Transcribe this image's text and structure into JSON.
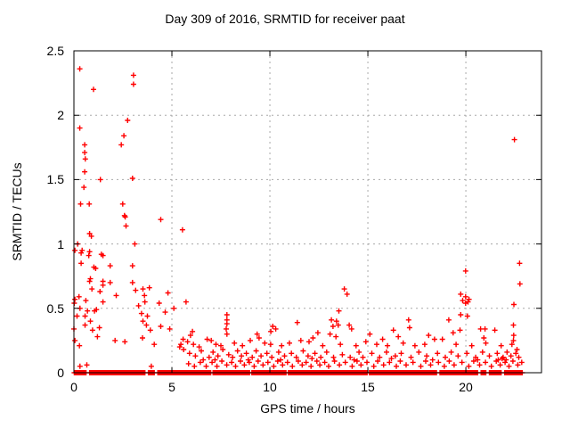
{
  "title": "Day 309 of 2016, SRMTID for receiver paat",
  "axes": {
    "xlabel": "GPS time / hours",
    "ylabel": "SRMTID / TECUs",
    "xtick_labels": [
      "0",
      "5",
      "10",
      "15",
      "20"
    ],
    "ytick_labels": [
      "0",
      "0.5",
      "1",
      "1.5",
      "2",
      "2.5"
    ]
  },
  "colors": {
    "marker": "#ff0000",
    "grid": "#a8a8a8",
    "border": "#000000",
    "text": "#000000",
    "background": "#ffffff"
  },
  "chart_data": {
    "type": "scatter",
    "marker": "plus",
    "title": "Day 309 of 2016, SRMTID for receiver paat",
    "xlabel": "GPS time / hours",
    "ylabel": "SRMTID / TECUs",
    "xlim": [
      0,
      23.86
    ],
    "ylim": [
      0,
      2.5
    ],
    "xticks": [
      0,
      5,
      10,
      15,
      20
    ],
    "yticks": [
      0,
      0.5,
      1,
      1.5,
      2,
      2.5
    ],
    "grid": true,
    "legend": "none",
    "zero_strip": {
      "description": "near-continuous run of samples at SRMTID = 0 along the whole day",
      "y": 0,
      "start": 0.02,
      "end": 22.9,
      "step": 0.06,
      "gaps": [
        [
          0.68,
          0.76
        ],
        [
          3.66,
          3.78
        ],
        [
          4.12,
          4.26
        ],
        [
          7.0,
          7.08
        ],
        [
          8.98,
          9.05
        ],
        [
          10.85,
          10.92
        ],
        [
          15.0,
          15.08
        ],
        [
          18.5,
          18.62
        ],
        [
          20.6,
          20.72
        ],
        [
          21.05,
          21.15
        ],
        [
          21.85,
          21.92
        ]
      ]
    },
    "points": [
      [
        0.3,
        2.36
      ],
      [
        3.04,
        2.31
      ],
      [
        3.04,
        2.24
      ],
      [
        1.0,
        2.2
      ],
      [
        2.74,
        1.96
      ],
      [
        0.3,
        1.9
      ],
      [
        2.55,
        1.84
      ],
      [
        22.48,
        1.81
      ],
      [
        2.42,
        1.77
      ],
      [
        0.55,
        1.77
      ],
      [
        0.55,
        1.71
      ],
      [
        0.58,
        1.66
      ],
      [
        0.55,
        1.56
      ],
      [
        2.99,
        1.51
      ],
      [
        1.35,
        1.5
      ],
      [
        0.51,
        1.44
      ],
      [
        0.34,
        1.31
      ],
      [
        0.78,
        1.31
      ],
      [
        2.49,
        1.31
      ],
      [
        2.58,
        1.22
      ],
      [
        2.62,
        1.21
      ],
      [
        4.43,
        1.19
      ],
      [
        2.66,
        1.14
      ],
      [
        5.54,
        1.11
      ],
      [
        0.8,
        1.08
      ],
      [
        0.89,
        1.06
      ],
      [
        3.11,
        1.0
      ],
      [
        0.19,
        1.0
      ],
      [
        0.05,
        0.95
      ],
      [
        0.42,
        0.95
      ],
      [
        0.37,
        0.93
      ],
      [
        0.8,
        0.94
      ],
      [
        0.76,
        0.91
      ],
      [
        1.48,
        0.91
      ],
      [
        1.4,
        0.92
      ],
      [
        22.74,
        0.85
      ],
      [
        0.37,
        0.85
      ],
      [
        1.02,
        0.82
      ],
      [
        1.11,
        0.81
      ],
      [
        1.85,
        0.83
      ],
      [
        2.99,
        0.83
      ],
      [
        19.99,
        0.79
      ],
      [
        0.84,
        0.73
      ],
      [
        0.8,
        0.71
      ],
      [
        1.48,
        0.71
      ],
      [
        1.85,
        0.7
      ],
      [
        2.99,
        0.7
      ],
      [
        22.76,
        0.69
      ],
      [
        1.48,
        0.68
      ],
      [
        0.92,
        0.65
      ],
      [
        3.15,
        0.64
      ],
      [
        3.52,
        0.65
      ],
      [
        13.8,
        0.65
      ],
      [
        3.85,
        0.66
      ],
      [
        1.33,
        0.63
      ],
      [
        4.8,
        0.62
      ],
      [
        13.94,
        0.61
      ],
      [
        19.74,
        0.61
      ],
      [
        3.6,
        0.6
      ],
      [
        2.16,
        0.6
      ],
      [
        0.26,
        0.59
      ],
      [
        19.99,
        0.59
      ],
      [
        0.05,
        0.57
      ],
      [
        20.16,
        0.57
      ],
      [
        0.61,
        0.56
      ],
      [
        19.84,
        0.56
      ],
      [
        5.72,
        0.55
      ],
      [
        1.48,
        0.55
      ],
      [
        3.62,
        0.55
      ],
      [
        20.11,
        0.55
      ],
      [
        0.02,
        0.54
      ],
      [
        4.35,
        0.54
      ],
      [
        19.99,
        0.54
      ],
      [
        22.45,
        0.53
      ],
      [
        3.3,
        0.52
      ],
      [
        5.1,
        0.5
      ],
      [
        0.31,
        0.5
      ],
      [
        1.05,
        0.48
      ],
      [
        13.52,
        0.48
      ],
      [
        0.69,
        0.48
      ],
      [
        1.15,
        0.49
      ],
      [
        4.66,
        0.47
      ],
      [
        3.45,
        0.46
      ],
      [
        7.81,
        0.45
      ],
      [
        19.74,
        0.45
      ],
      [
        0.16,
        0.44
      ],
      [
        0.57,
        0.44
      ],
      [
        20.08,
        0.44
      ],
      [
        3.75,
        0.44
      ],
      [
        7.81,
        0.41
      ],
      [
        17.08,
        0.41
      ],
      [
        19.13,
        0.41
      ],
      [
        13.14,
        0.41
      ],
      [
        0.84,
        0.4
      ],
      [
        13.4,
        0.4
      ],
      [
        3.52,
        0.4
      ],
      [
        11.4,
        0.39
      ],
      [
        7.81,
        0.38
      ],
      [
        14.05,
        0.37
      ],
      [
        0.57,
        0.37
      ],
      [
        22.43,
        0.37
      ],
      [
        13.49,
        0.37
      ],
      [
        3.7,
        0.37
      ],
      [
        10.15,
        0.36
      ],
      [
        13.22,
        0.36
      ],
      [
        4.43,
        0.36
      ],
      [
        17.13,
        0.35
      ],
      [
        1.3,
        0.35
      ],
      [
        10.3,
        0.34
      ],
      [
        0.0,
        0.34
      ],
      [
        7.77,
        0.34
      ],
      [
        14.17,
        0.34
      ],
      [
        20.75,
        0.34
      ],
      [
        20.98,
        0.34
      ],
      [
        21.48,
        0.33
      ],
      [
        19.7,
        0.33
      ],
      [
        16.3,
        0.33
      ],
      [
        3.9,
        0.33
      ],
      [
        0.95,
        0.33
      ],
      [
        6.05,
        0.32
      ],
      [
        10.05,
        0.32
      ],
      [
        12.45,
        0.31
      ],
      [
        19.35,
        0.31
      ],
      [
        4.89,
        0.34
      ],
      [
        7.81,
        0.3
      ],
      [
        9.35,
        0.3
      ],
      [
        13.07,
        0.3
      ],
      [
        15.1,
        0.3
      ],
      [
        18.1,
        0.29
      ],
      [
        22.44,
        0.29
      ],
      [
        1.2,
        0.28
      ],
      [
        5.95,
        0.29
      ],
      [
        13.37,
        0.28
      ],
      [
        16.55,
        0.28
      ],
      [
        20.92,
        0.27
      ],
      [
        2.1,
        0.25
      ],
      [
        3.5,
        0.27
      ],
      [
        5.46,
        0.22
      ],
      [
        5.4,
        0.2
      ],
      [
        5.57,
        0.26
      ],
      [
        5.8,
        0.24
      ],
      [
        6.1,
        0.22
      ],
      [
        6.39,
        0.2
      ],
      [
        6.8,
        0.26
      ],
      [
        7.01,
        0.25
      ],
      [
        7.25,
        0.22
      ],
      [
        7.5,
        0.21
      ],
      [
        8.19,
        0.23
      ],
      [
        8.6,
        0.21
      ],
      [
        9.0,
        0.25
      ],
      [
        9.74,
        0.23
      ],
      [
        10.04,
        0.22
      ],
      [
        10.6,
        0.21
      ],
      [
        11.0,
        0.23
      ],
      [
        11.58,
        0.25
      ],
      [
        12.0,
        0.24
      ],
      [
        12.7,
        0.21
      ],
      [
        13.6,
        0.22
      ],
      [
        14.4,
        0.21
      ],
      [
        14.9,
        0.24
      ],
      [
        15.45,
        0.22
      ],
      [
        16.0,
        0.21
      ],
      [
        16.8,
        0.23
      ],
      [
        17.4,
        0.21
      ],
      [
        18.4,
        0.26
      ],
      [
        18.8,
        0.26
      ],
      [
        19.5,
        0.22
      ],
      [
        20.3,
        0.21
      ],
      [
        21.02,
        0.23
      ],
      [
        21.8,
        0.21
      ],
      [
        22.35,
        0.22
      ],
      [
        22.43,
        0.25
      ],
      [
        0.05,
        0.25
      ],
      [
        0.28,
        0.21
      ],
      [
        2.6,
        0.24
      ],
      [
        4.1,
        0.22
      ],
      [
        9.45,
        0.27
      ],
      [
        12.2,
        0.27
      ],
      [
        15.75,
        0.26
      ],
      [
        17.9,
        0.22
      ],
      [
        22.61,
        0.18
      ],
      [
        5.6,
        0.18
      ],
      [
        5.9,
        0.15
      ],
      [
        6.2,
        0.13
      ],
      [
        6.5,
        0.17
      ],
      [
        6.9,
        0.12
      ],
      [
        7.1,
        0.16
      ],
      [
        7.35,
        0.13
      ],
      [
        7.6,
        0.18
      ],
      [
        7.9,
        0.14
      ],
      [
        8.1,
        0.12
      ],
      [
        8.35,
        0.17
      ],
      [
        8.55,
        0.13
      ],
      [
        8.8,
        0.15
      ],
      [
        9.1,
        0.12
      ],
      [
        9.3,
        0.17
      ],
      [
        9.55,
        0.13
      ],
      [
        9.85,
        0.15
      ],
      [
        10.1,
        0.12
      ],
      [
        10.45,
        0.16
      ],
      [
        10.75,
        0.13
      ],
      [
        11.1,
        0.15
      ],
      [
        11.35,
        0.12
      ],
      [
        11.7,
        0.17
      ],
      [
        11.95,
        0.13
      ],
      [
        12.3,
        0.15
      ],
      [
        12.6,
        0.12
      ],
      [
        12.9,
        0.16
      ],
      [
        13.25,
        0.12
      ],
      [
        13.7,
        0.14
      ],
      [
        14.1,
        0.12
      ],
      [
        14.55,
        0.16
      ],
      [
        14.75,
        0.12
      ],
      [
        15.2,
        0.15
      ],
      [
        15.6,
        0.12
      ],
      [
        15.95,
        0.16
      ],
      [
        16.4,
        0.13
      ],
      [
        16.7,
        0.15
      ],
      [
        17.2,
        0.12
      ],
      [
        17.6,
        0.16
      ],
      [
        18.0,
        0.13
      ],
      [
        18.55,
        0.15
      ],
      [
        18.95,
        0.12
      ],
      [
        19.25,
        0.16
      ],
      [
        19.6,
        0.13
      ],
      [
        20.05,
        0.15
      ],
      [
        20.5,
        0.12
      ],
      [
        20.85,
        0.16
      ],
      [
        21.2,
        0.13
      ],
      [
        21.6,
        0.15
      ],
      [
        21.9,
        0.12
      ],
      [
        22.1,
        0.16
      ],
      [
        22.3,
        0.13
      ],
      [
        22.55,
        0.15
      ],
      [
        22.7,
        0.12
      ],
      [
        0.31,
        0.05
      ],
      [
        0.66,
        0.06
      ],
      [
        3.95,
        0.05
      ],
      [
        5.85,
        0.07
      ],
      [
        6.15,
        0.05
      ],
      [
        6.45,
        0.08
      ],
      [
        6.75,
        0.05
      ],
      [
        7.05,
        0.08
      ],
      [
        7.3,
        0.05
      ],
      [
        7.55,
        0.09
      ],
      [
        7.8,
        0.06
      ],
      [
        8.05,
        0.08
      ],
      [
        8.25,
        0.05
      ],
      [
        8.5,
        0.09
      ],
      [
        8.7,
        0.06
      ],
      [
        8.95,
        0.08
      ],
      [
        9.2,
        0.05
      ],
      [
        9.4,
        0.09
      ],
      [
        9.65,
        0.06
      ],
      [
        9.9,
        0.08
      ],
      [
        10.2,
        0.05
      ],
      [
        10.4,
        0.09
      ],
      [
        10.65,
        0.06
      ],
      [
        10.9,
        0.08
      ],
      [
        11.15,
        0.05
      ],
      [
        11.45,
        0.09
      ],
      [
        11.65,
        0.06
      ],
      [
        11.85,
        0.08
      ],
      [
        12.1,
        0.05
      ],
      [
        12.4,
        0.09
      ],
      [
        12.55,
        0.06
      ],
      [
        12.8,
        0.08
      ],
      [
        13.0,
        0.05
      ],
      [
        13.3,
        0.09
      ],
      [
        13.55,
        0.06
      ],
      [
        13.85,
        0.08
      ],
      [
        14.2,
        0.05
      ],
      [
        14.45,
        0.09
      ],
      [
        14.65,
        0.06
      ],
      [
        14.95,
        0.08
      ],
      [
        15.3,
        0.05
      ],
      [
        15.5,
        0.09
      ],
      [
        15.8,
        0.06
      ],
      [
        16.1,
        0.08
      ],
      [
        16.45,
        0.05
      ],
      [
        16.65,
        0.09
      ],
      [
        16.95,
        0.06
      ],
      [
        17.3,
        0.08
      ],
      [
        17.7,
        0.05
      ],
      [
        17.95,
        0.09
      ],
      [
        18.2,
        0.06
      ],
      [
        18.6,
        0.08
      ],
      [
        18.9,
        0.05
      ],
      [
        19.15,
        0.09
      ],
      [
        19.4,
        0.06
      ],
      [
        19.8,
        0.08
      ],
      [
        20.15,
        0.05
      ],
      [
        20.4,
        0.09
      ],
      [
        20.7,
        0.06
      ],
      [
        21.0,
        0.08
      ],
      [
        21.3,
        0.05
      ],
      [
        21.55,
        0.09
      ],
      [
        21.75,
        0.06
      ],
      [
        22.0,
        0.08
      ],
      [
        22.2,
        0.05
      ],
      [
        22.4,
        0.09
      ],
      [
        22.65,
        0.06
      ],
      [
        22.85,
        0.08
      ],
      [
        21.65,
        0.1
      ],
      [
        21.85,
        0.11
      ],
      [
        22.05,
        0.1
      ],
      [
        6.6,
        0.1
      ],
      [
        7.2,
        0.1
      ],
      [
        8.9,
        0.1
      ],
      [
        10.55,
        0.1
      ],
      [
        12.15,
        0.11
      ],
      [
        14.3,
        0.1
      ],
      [
        16.2,
        0.11
      ],
      [
        18.3,
        0.1
      ],
      [
        20.6,
        0.1
      ]
    ]
  }
}
